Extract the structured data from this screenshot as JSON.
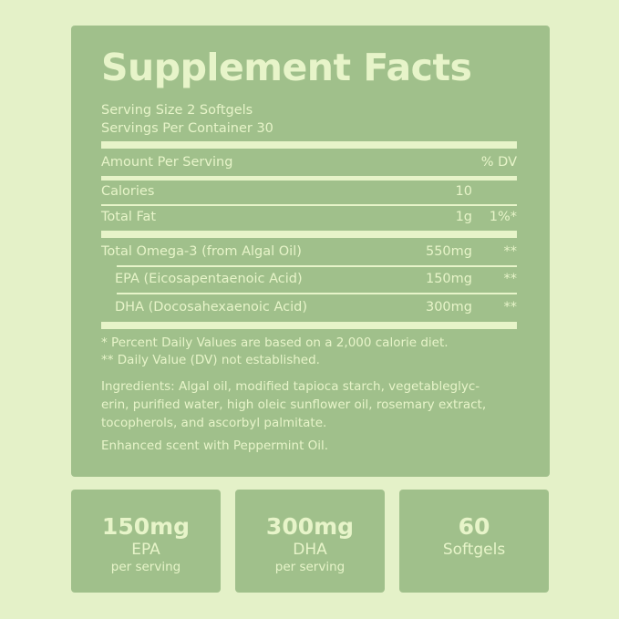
{
  "title": "Supplement Facts",
  "serving_size": "Serving Size 2 Softgels",
  "servings_per_container": "Servings Per Container 30",
  "header": {
    "amount": "Amount Per Serving",
    "dv": "% DV"
  },
  "rows": [
    {
      "name": "Calories",
      "amount": "10",
      "dv": ""
    },
    {
      "name": "Total Fat",
      "amount": "1g",
      "dv": "1%*"
    },
    {
      "name": "Total Omega-3 (from Algal Oil)",
      "amount": "550mg",
      "dv": "**"
    },
    {
      "name": "EPA (Eicosapentaenoic Acid)",
      "amount": "150mg",
      "dv": "**"
    },
    {
      "name": "DHA (Docosahexaenoic Acid)",
      "amount": "300mg",
      "dv": "**"
    }
  ],
  "footnotes": [
    "* Percent Daily Values are based on a 2,000 calorie diet.",
    "** Daily Value (DV) not established."
  ],
  "ingredients": [
    "Ingredients: Algal oil, modified tapioca starch, vegetableglyc-",
    "erin, purified water, high oleic sunflower oil, rosemary extract,",
    "tocopherols, and ascorbyl palmitate."
  ],
  "scent": "Enhanced scent with Peppermint Oil.",
  "highlights": [
    {
      "value": "150mg",
      "label": "EPA",
      "sub": "per serving"
    },
    {
      "value": "300mg",
      "label": "DHA",
      "sub": "per serving"
    },
    {
      "value": "60",
      "label": "Softgels",
      "sub": ""
    }
  ],
  "colors": {
    "background": "#e4f1c8",
    "panel": "#a0c08b",
    "text": "#e7f4c9"
  }
}
